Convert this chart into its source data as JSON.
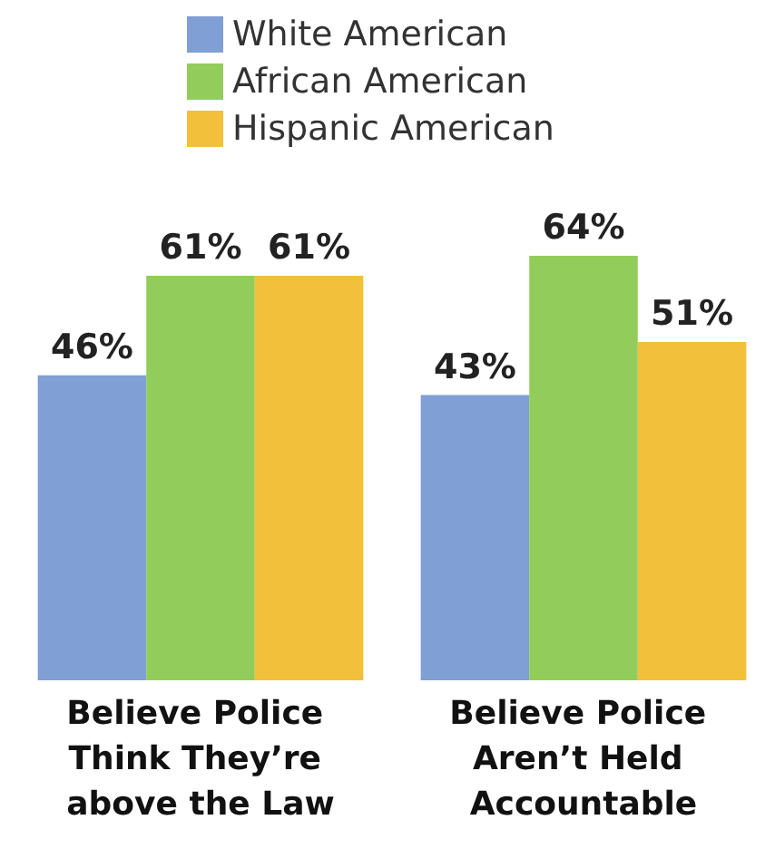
{
  "chart_data": {
    "type": "bar",
    "categories": [
      "Believe Police Think They’re above the Law",
      "Believe Police Aren’t Held Accountable"
    ],
    "series": [
      {
        "name": "White American",
        "color": "#7f9fd5",
        "values": [
          46,
          43
        ],
        "value_labels": [
          "46%",
          "43%"
        ]
      },
      {
        "name": "African American",
        "color": "#92cc5a",
        "values": [
          61,
          64
        ],
        "value_labels": [
          "61%",
          "64%"
        ]
      },
      {
        "name": "Hispanic American",
        "color": "#f2c03a",
        "values": [
          61,
          51
        ],
        "value_labels": [
          "61%",
          "51%"
        ]
      }
    ],
    "legend": "top",
    "grid": false
  }
}
